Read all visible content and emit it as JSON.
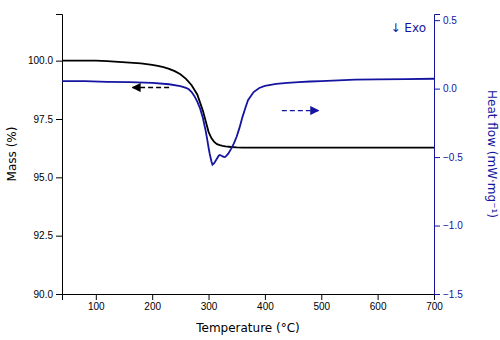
{
  "chart_data": {
    "type": "line",
    "xlabel": "Temperature (°C)",
    "ylabel": "Mass (%)",
    "y2label": "Heat flow (mW·mg⁻¹)",
    "xlim": [
      40,
      700
    ],
    "xticks": [
      100,
      200,
      300,
      400,
      500,
      600,
      700
    ],
    "ylim": [
      90,
      102
    ],
    "yticks": [
      {
        "value": 90,
        "label": "90.0"
      },
      92.5,
      {
        "value": 95,
        "label": "95.0"
      },
      97.5,
      {
        "value": 100,
        "label": "100.0"
      }
    ],
    "y2lim": [
      -1.5,
      0.545
    ],
    "y2ticks": [
      {
        "value": -1.5,
        "label": "−1.5"
      },
      {
        "value": -1.0,
        "label": "−1.0"
      },
      {
        "value": -0.5,
        "label": "−0.5"
      },
      {
        "value": 0,
        "label": "0.0"
      },
      0.5
    ],
    "grid": false,
    "series": [
      {
        "color": "#000000",
        "line_style": "solid",
        "x": [
          40,
          60,
          80,
          100,
          120,
          140,
          160,
          180,
          200,
          210,
          220,
          230,
          240,
          250,
          260,
          270,
          280,
          290,
          295,
          300,
          305,
          310,
          315,
          320,
          325,
          330,
          340,
          350,
          360,
          370,
          380,
          390,
          400,
          420,
          450,
          480,
          500,
          550,
          600,
          650,
          700
        ],
        "values": [
          100.0,
          100.0,
          100.0,
          100.0,
          99.98,
          99.95,
          99.92,
          99.88,
          99.82,
          99.78,
          99.72,
          99.65,
          99.55,
          99.42,
          99.22,
          98.95,
          98.55,
          97.85,
          97.4,
          96.95,
          96.68,
          96.52,
          96.42,
          96.38,
          96.35,
          96.33,
          96.3,
          96.28,
          96.27,
          96.27,
          96.27,
          96.27,
          96.27,
          96.27,
          96.27,
          96.27,
          96.27,
          96.27,
          96.27,
          96.27,
          96.27
        ]
      },
      {
        "color": "#1414a0",
        "line_style": "solid",
        "axis": "y2",
        "x": [
          40,
          80,
          120,
          160,
          200,
          230,
          250,
          260,
          265,
          270,
          275,
          280,
          285,
          290,
          295,
          298,
          300,
          302,
          305,
          307,
          310,
          315,
          318,
          320,
          323,
          325,
          328,
          330,
          335,
          340,
          345,
          350,
          355,
          360,
          365,
          370,
          380,
          390,
          400,
          420,
          440,
          460,
          480,
          500,
          530,
          560,
          600,
          650,
          700
        ],
        "values": [
          0.055,
          0.055,
          0.05,
          0.048,
          0.042,
          0.032,
          0.018,
          0.005,
          -0.005,
          -0.025,
          -0.055,
          -0.095,
          -0.145,
          -0.215,
          -0.31,
          -0.38,
          -0.43,
          -0.475,
          -0.53,
          -0.555,
          -0.545,
          -0.51,
          -0.49,
          -0.485,
          -0.49,
          -0.495,
          -0.5,
          -0.498,
          -0.475,
          -0.44,
          -0.4,
          -0.35,
          -0.285,
          -0.21,
          -0.145,
          -0.085,
          -0.025,
          0.005,
          0.02,
          0.035,
          0.042,
          0.048,
          0.052,
          0.055,
          0.06,
          0.065,
          0.068,
          0.07,
          0.072
        ]
      }
    ],
    "annotations": [
      {
        "text": "↓ Exo",
        "color": "#1414a0",
        "axis": "y2"
      }
    ],
    "arrows": [
      {
        "x_start": 230,
        "x_end": 165,
        "y": 98.85,
        "color": "#000000",
        "line_style": "dashed"
      },
      {
        "x_start": 430,
        "x_end": 495,
        "y": -0.16,
        "color": "#1414a0",
        "line_style": "dashed",
        "axis": "y2"
      }
    ]
  }
}
